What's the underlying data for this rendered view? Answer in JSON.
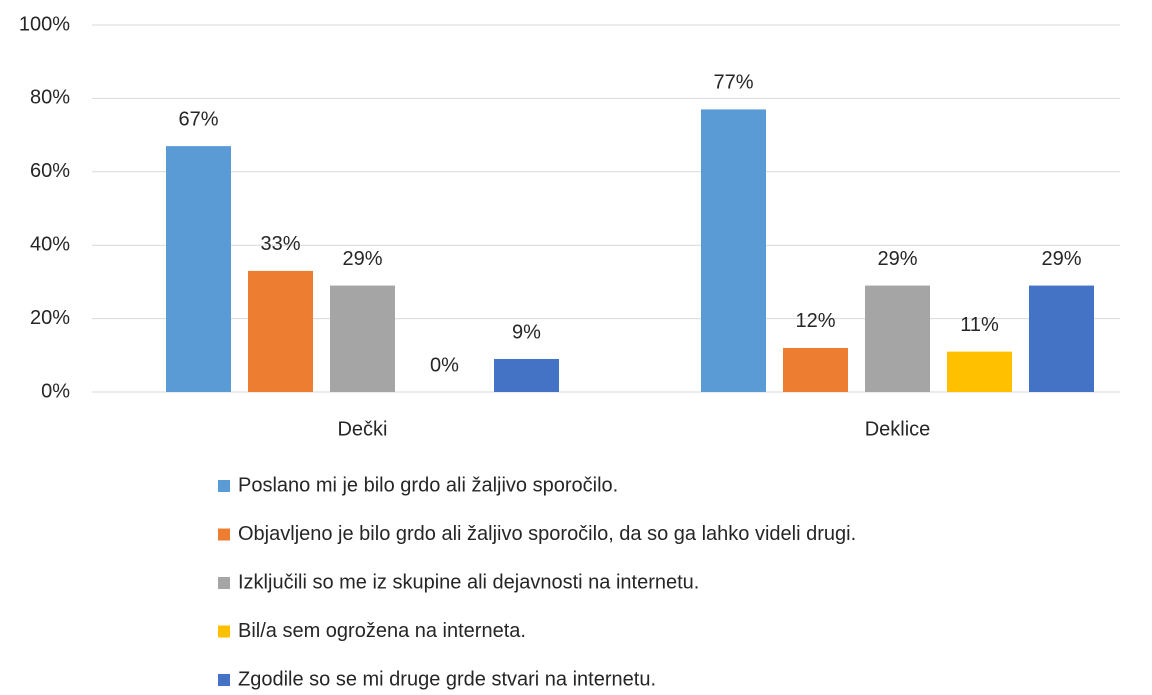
{
  "chart_data": {
    "type": "bar",
    "categories": [
      "Dečki",
      "Deklice"
    ],
    "series": [
      {
        "name": "Poslano mi je bilo grdo ali žaljivo sporočilo.",
        "color": "#5b9bd5",
        "values": [
          67,
          77
        ],
        "value_labels": [
          "67%",
          "77%"
        ]
      },
      {
        "name": "Objavljeno je bilo grdo ali žaljivo sporočilo, da so ga lahko videli drugi.",
        "color": "#ed7d31",
        "values": [
          33,
          12
        ],
        "value_labels": [
          "33%",
          "12%"
        ]
      },
      {
        "name": "Izključili so me iz skupine ali dejavnosti na internetu.",
        "color": "#a5a5a5",
        "values": [
          29,
          29
        ],
        "value_labels": [
          "29%",
          "29%"
        ]
      },
      {
        "name": "Bil/a sem ogrožena na interneta.",
        "color": "#ffc000",
        "values": [
          0,
          11
        ],
        "value_labels": [
          "0%",
          "11%"
        ]
      },
      {
        "name": "Zgodile so se mi druge grde stvari na internetu.",
        "color": "#4472c4",
        "values": [
          9,
          29
        ],
        "value_labels": [
          "9%",
          "29%"
        ]
      }
    ],
    "ylim": [
      0,
      100
    ],
    "yticks": [
      {
        "value": 0,
        "label": "0%"
      },
      {
        "value": 20,
        "label": "20%"
      },
      {
        "value": 40,
        "label": "40%"
      },
      {
        "value": 60,
        "label": "60%"
      },
      {
        "value": 80,
        "label": "80%"
      },
      {
        "value": 100,
        "label": "100%"
      }
    ],
    "grid": true,
    "legend": "bottom"
  }
}
